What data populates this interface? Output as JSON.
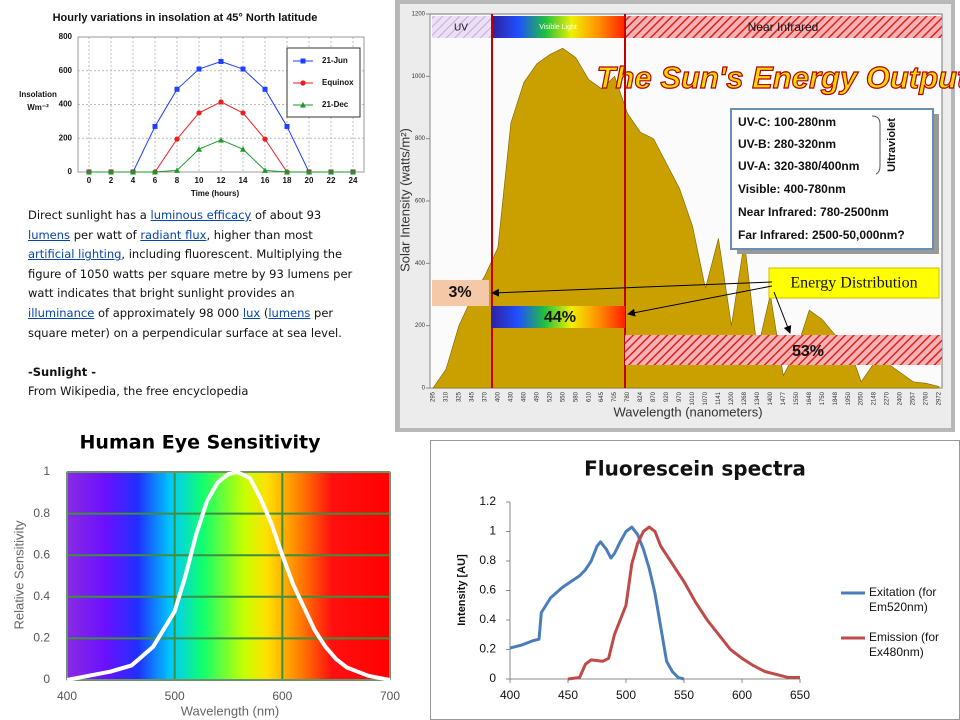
{
  "chart_data": [
    {
      "type": "line",
      "title": "Hourly variations in insolation at 45° North latitude",
      "y_label": "Insolation",
      "y_unit": "Wm⁻²",
      "x_label": "Time (hours)",
      "x": [
        0,
        2,
        4,
        6,
        8,
        10,
        12,
        14,
        16,
        18,
        20,
        22,
        24
      ],
      "xlim": [
        -1,
        25
      ],
      "xticks": [
        0,
        2,
        4,
        6,
        8,
        10,
        12,
        14,
        16,
        18,
        20,
        22,
        24
      ],
      "ylim": [
        0,
        800
      ],
      "yticks": [
        0,
        200,
        400,
        600,
        800
      ],
      "grid": true,
      "grid_color": "#bbbbbb",
      "legend": "upper right",
      "series": [
        {
          "name": "21-Jun",
          "color": "#1f3fff",
          "marker": "square",
          "values": [
            0,
            0,
            0,
            270,
            490,
            610,
            655,
            610,
            490,
            270,
            0,
            0,
            0
          ]
        },
        {
          "name": "Equinox",
          "color": "#ee1c1c",
          "marker": "circle",
          "values": [
            0,
            0,
            0,
            0,
            195,
            350,
            415,
            350,
            195,
            0,
            0,
            0,
            0
          ]
        },
        {
          "name": "21-Dec",
          "color": "#1a9a2a",
          "marker": "triangle",
          "values": [
            0,
            0,
            0,
            0,
            10,
            135,
            190,
            135,
            10,
            0,
            0,
            0,
            0
          ]
        }
      ]
    },
    {
      "type": "area",
      "title": "The Sun's Energy Output",
      "y_label": "Solar Intensity (watts/m²)",
      "x_label": "Wavelength (nanometers)",
      "categories": [
        "295",
        "310",
        "325",
        "345",
        "370",
        "400",
        "430",
        "460",
        "490",
        "520",
        "550",
        "580",
        "610",
        "645",
        "705",
        "780",
        "824",
        "870",
        "920",
        "970",
        "1010",
        "1070",
        "1141",
        "1200",
        "1268",
        "1340",
        "1400",
        "1477",
        "1550",
        "1648",
        "1750",
        "1848",
        "1950",
        "2050",
        "2148",
        "2270",
        "2400",
        "2557",
        "2760",
        "2972"
      ],
      "values": [
        0,
        60,
        200,
        290,
        360,
        450,
        850,
        980,
        1040,
        1070,
        1090,
        1060,
        990,
        960,
        1000,
        880,
        820,
        800,
        720,
        640,
        520,
        320,
        480,
        200,
        470,
        120,
        300,
        40,
        120,
        250,
        220,
        170,
        140,
        20,
        80,
        80,
        50,
        20,
        15,
        5
      ],
      "color": "#c9a000",
      "ylim": [
        0,
        1200
      ],
      "yticks": [
        0,
        200,
        400,
        600,
        800,
        1000,
        1200
      ],
      "grid": false,
      "bands": [
        "UV",
        "Visible Light",
        "Near Infrared"
      ],
      "band_shares": [
        3,
        44,
        53
      ],
      "band_share_labels": [
        "3%",
        "44%",
        "53%"
      ],
      "energy_label": "Energy Distribution",
      "ranges": [
        "UV-C: 100-280nm",
        "UV-B: 280-320nm",
        "UV-A: 320-380/400nm",
        "Visible: 400-780nm",
        "Near Infrared: 780-2500nm",
        "Far Infrared: 2500-50,000nm?"
      ],
      "ultraviolet_label": "Ultraviolet"
    },
    {
      "type": "line",
      "title": "Human Eye Sensitivity",
      "x_label": "Wavelength (nm)",
      "y_label": "Relative Sensitivity",
      "x": [
        400,
        420,
        440,
        460,
        480,
        500,
        510,
        520,
        530,
        540,
        550,
        558,
        570,
        580,
        590,
        600,
        610,
        620,
        630,
        640,
        650,
        660,
        670,
        680,
        690,
        700
      ],
      "values": [
        0,
        0.02,
        0.04,
        0.07,
        0.16,
        0.33,
        0.5,
        0.7,
        0.86,
        0.95,
        0.99,
        1,
        0.97,
        0.87,
        0.75,
        0.6,
        0.46,
        0.35,
        0.24,
        0.16,
        0.1,
        0.06,
        0.04,
        0.02,
        0.01,
        0
      ],
      "color": "#ffffff",
      "background": "spectrum",
      "xlim": [
        400,
        700
      ],
      "xticks": [
        400,
        500,
        600,
        700
      ],
      "ylim": [
        0,
        1
      ],
      "yticks": [
        0,
        0.2,
        0.4,
        0.6,
        0.8,
        1
      ],
      "grid": true,
      "grid_color": "#3f8f3f"
    },
    {
      "type": "line",
      "title": "Fluorescein spectra",
      "y_label": "Intensity [AU]",
      "xlim": [
        400,
        650
      ],
      "xticks": [
        400,
        450,
        500,
        550,
        600,
        650
      ],
      "ylim": [
        0,
        1.2
      ],
      "yticks": [
        0,
        0.2,
        0.4,
        0.6,
        0.8,
        1,
        1.2
      ],
      "grid": false,
      "legend": "right",
      "series": [
        {
          "name": "Exitation (for Em520nm)",
          "color": "#4a7ebb",
          "x": [
            400,
            410,
            420,
            425,
            427,
            435,
            445,
            460,
            465,
            470,
            475,
            478,
            483,
            487,
            490,
            495,
            500,
            505,
            510,
            515,
            520,
            525,
            530,
            535,
            540,
            545,
            550
          ],
          "values": [
            0.21,
            0.23,
            0.26,
            0.27,
            0.45,
            0.55,
            0.62,
            0.7,
            0.74,
            0.8,
            0.9,
            0.93,
            0.88,
            0.82,
            0.85,
            0.93,
            1.0,
            1.03,
            0.98,
            0.88,
            0.75,
            0.58,
            0.35,
            0.12,
            0.05,
            0.01,
            0
          ]
        },
        {
          "name": "Emission (for Ex480nm)",
          "color": "#be4b48",
          "x": [
            450,
            460,
            465,
            470,
            480,
            485,
            490,
            500,
            505,
            510,
            515,
            520,
            525,
            530,
            540,
            550,
            560,
            570,
            580,
            590,
            600,
            610,
            620,
            630,
            640,
            650
          ],
          "values": [
            0,
            0.01,
            0.1,
            0.13,
            0.12,
            0.14,
            0.3,
            0.5,
            0.78,
            0.92,
            1.0,
            1.03,
            1.0,
            0.9,
            0.78,
            0.66,
            0.52,
            0.4,
            0.3,
            0.2,
            0.14,
            0.09,
            0.05,
            0.03,
            0.01,
            0.01
          ]
        }
      ]
    }
  ],
  "article": {
    "segments": [
      {
        "text": "Direct sunlight has a ",
        "link": false
      },
      {
        "text": "luminous efficacy",
        "link": true
      },
      {
        "text": " of about 93 ",
        "link": false
      },
      {
        "text": "lumens",
        "link": true
      },
      {
        "text": " per watt of ",
        "link": false
      },
      {
        "text": "radiant flux",
        "link": true
      },
      {
        "text": ", higher than most ",
        "link": false
      },
      {
        "text": "artificial lighting",
        "link": true
      },
      {
        "text": ", including fluorescent. Multiplying the figure of 1050 watts per square metre by 93 lumens per watt indicates that bright sunlight provides an ",
        "link": false
      },
      {
        "text": "illuminance",
        "link": true
      },
      {
        "text": " of approximately 98 000 ",
        "link": false
      },
      {
        "text": "lux",
        "link": true
      },
      {
        "text": " (",
        "link": false
      },
      {
        "text": "lumens",
        "link": true
      },
      {
        "text": " per square meter) on a perpendicular surface at sea level.",
        "link": false
      }
    ],
    "source_title": "-Sunlight -",
    "source": "From Wikipedia, the free encyclopedia"
  }
}
